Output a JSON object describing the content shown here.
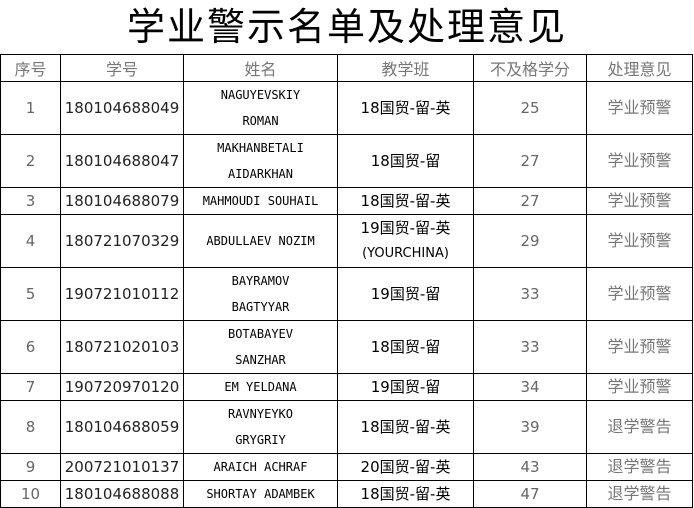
{
  "title": "学业警示名单及处理意见",
  "headers": [
    "序号",
    "学号",
    "姓名",
    "教学班",
    "不及格学分",
    "处理意见"
  ],
  "rows": [
    {
      "no": "1",
      "id": "180104688049",
      "name": [
        "NAGUYEVSKIY",
        "ROMAN"
      ],
      "cls": [
        "18国贸-留-英"
      ],
      "credits": "25",
      "opinion": "学业预警"
    },
    {
      "no": "2",
      "id": "180104688047",
      "name": [
        "MAKHANBETALI",
        "AIDARKHAN"
      ],
      "cls": [
        "18国贸-留"
      ],
      "credits": "27",
      "opinion": "学业预警"
    },
    {
      "no": "3",
      "id": "180104688079",
      "name": [
        "MAHMOUDI SOUHAIL"
      ],
      "cls": [
        "18国贸-留-英"
      ],
      "credits": "27",
      "opinion": "学业预警"
    },
    {
      "no": "4",
      "id": "180721070329",
      "name": [
        "ABDULLAEV NOZIM"
      ],
      "cls": [
        "19国贸-留-英",
        "(YOURCHINA)"
      ],
      "credits": "29",
      "opinion": "学业预警"
    },
    {
      "no": "5",
      "id": "190721010112",
      "name": [
        "BAYRAMOV",
        "BAGTYYAR"
      ],
      "cls": [
        "19国贸-留"
      ],
      "credits": "33",
      "opinion": "学业预警"
    },
    {
      "no": "6",
      "id": "180721020103",
      "name": [
        "BOTABAYEV",
        "SANZHAR"
      ],
      "cls": [
        "18国贸-留"
      ],
      "credits": "33",
      "opinion": "学业预警"
    },
    {
      "no": "7",
      "id": "190720970120",
      "name": [
        "EM YELDANA"
      ],
      "cls": [
        "19国贸-留"
      ],
      "credits": "34",
      "opinion": "学业预警"
    },
    {
      "no": "8",
      "id": "180104688059",
      "name": [
        "RAVNYEYKO",
        "GRYGRIY"
      ],
      "cls": [
        "18国贸-留-英"
      ],
      "credits": "39",
      "opinion": "退学警告"
    },
    {
      "no": "9",
      "id": "200721010137",
      "name": [
        "ARAICH ACHRAF"
      ],
      "cls": [
        "20国贸-留-英"
      ],
      "credits": "43",
      "opinion": "退学警告"
    },
    {
      "no": "10",
      "id": "180104688088",
      "name": [
        "SHORTAY ADAMBEK"
      ],
      "cls": [
        "18国贸-留-英"
      ],
      "credits": "47",
      "opinion": "退学警告"
    }
  ]
}
